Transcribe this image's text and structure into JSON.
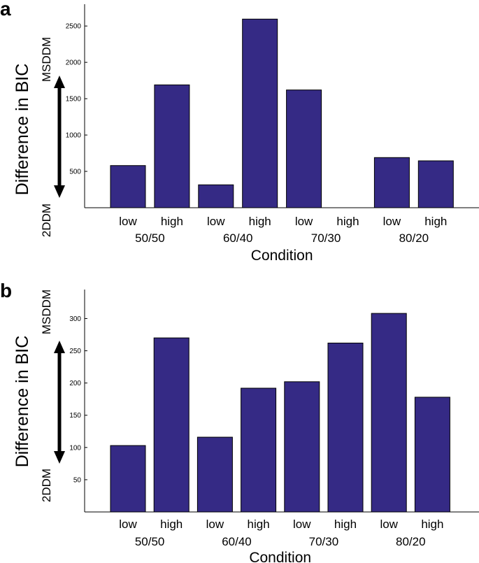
{
  "chart_data": [
    {
      "panel": "a",
      "type": "bar",
      "categories": [
        "low",
        "high",
        "low",
        "high",
        "low",
        "high",
        "low",
        "high"
      ],
      "groups": [
        "50/50",
        "60/40",
        "70/30",
        "80/20"
      ],
      "values": [
        580,
        1690,
        315,
        2595,
        1620,
        0,
        690,
        645
      ],
      "yticks": [
        500,
        1000,
        1500,
        2000,
        2500
      ],
      "ylim": [
        0,
        2800
      ],
      "xlabel": "Condition",
      "ylabel": "Difference in BIC",
      "top_label": "MSDDM",
      "bottom_label": "2DDM"
    },
    {
      "panel": "b",
      "type": "bar",
      "categories": [
        "low",
        "high",
        "low",
        "high",
        "low",
        "high",
        "low",
        "high"
      ],
      "groups": [
        "50/50",
        "60/40",
        "70/30",
        "80/20"
      ],
      "values": [
        103,
        270,
        116,
        192,
        202,
        262,
        308,
        178
      ],
      "yticks": [
        50,
        100,
        150,
        200,
        250,
        300
      ],
      "ylim": [
        0,
        345
      ],
      "xlabel": "Condition",
      "ylabel": "Difference in BIC",
      "top_label": "MSDDM",
      "bottom_label": "2DDM"
    }
  ]
}
